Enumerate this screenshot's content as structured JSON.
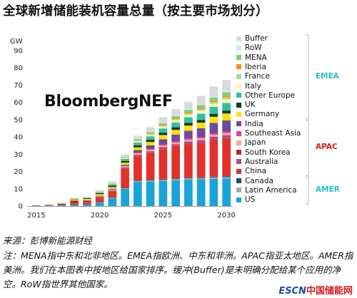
{
  "title": "全球新增储能装机容量总量（按主要市场划分）",
  "unit": "GW",
  "brand": "BloombergNEF",
  "source": "来源：彭博新能源财经",
  "note": "注：MENA指中东和北非地区。EMEA指欧洲、中东和非洲。APAC指亚太地区。AMER指美洲。我们在本图表中按地区给国家排序。缓冲(Buffer)是未明确分配给某个应用的净空。RoW指世界其他国家。",
  "watermark": {
    "part1": "ESCN",
    "part2": "中国储能网"
  },
  "region_labels": {
    "emea": {
      "text": "EMEA",
      "color": "#2bbfc4"
    },
    "apac": {
      "text": "APAC",
      "color": "#d7191c"
    },
    "amer": {
      "text": "AMER",
      "color": "#2bbfc4"
    }
  },
  "chart_data": {
    "type": "bar",
    "stacked": true,
    "ylabel": "GW",
    "ylim": [
      0,
      90
    ],
    "yticks": [
      0,
      10,
      20,
      30,
      40,
      50,
      60,
      70,
      80,
      90
    ],
    "xticks": [
      "2015",
      "2020",
      "2025",
      "2030"
    ],
    "grid": false,
    "legend_position": "right",
    "categories": [
      "2015",
      "2016",
      "2017",
      "2018",
      "2019",
      "2020",
      "2021",
      "2022",
      "2023",
      "2024",
      "2025",
      "2026",
      "2027",
      "2028",
      "2029",
      "2030"
    ],
    "series": [
      {
        "name": "US",
        "color": "#1aa3d9",
        "values": [
          0.2,
          0.3,
          0.4,
          0.8,
          1.0,
          2.0,
          4.5,
          10.0,
          14.0,
          14.3,
          14.5,
          15.0,
          15.3,
          15.5,
          15.8,
          16.0
        ]
      },
      {
        "name": "Latin America",
        "color": "#a6aaac",
        "values": [
          0,
          0,
          0,
          0,
          0,
          0.1,
          0.2,
          0.3,
          0.5,
          0.5,
          0.6,
          0.6,
          0.7,
          0.7,
          0.8,
          0.8
        ]
      },
      {
        "name": "Canada",
        "color": "#16556d",
        "values": [
          0,
          0,
          0,
          0,
          0,
          0,
          0.1,
          0.2,
          0.3,
          0.3,
          0.3,
          0.4,
          0.4,
          0.4,
          0.4,
          0.5
        ]
      },
      {
        "name": "China",
        "color": "#e2312b",
        "values": [
          0.1,
          0.2,
          0.3,
          0.8,
          1.0,
          2.5,
          3.5,
          11.0,
          14.0,
          15.5,
          17.5,
          18.5,
          19.5,
          20.0,
          21.5,
          22.0
        ]
      },
      {
        "name": "Australia",
        "color": "#a64d9c",
        "values": [
          0,
          0,
          0,
          0.1,
          0.2,
          0.3,
          0.4,
          0.5,
          0.6,
          0.7,
          0.8,
          0.9,
          1.0,
          1.1,
          1.2,
          1.3
        ]
      },
      {
        "name": "South Korea",
        "color": "#b8271e",
        "values": [
          0.1,
          0.2,
          0.5,
          1.5,
          1.0,
          0.6,
          0.3,
          0.3,
          0.3,
          0.4,
          0.4,
          0.4,
          0.4,
          0.4,
          0.4,
          0.4
        ]
      },
      {
        "name": "Japan",
        "color": "#f3a89b",
        "values": [
          0,
          0,
          0.1,
          0.2,
          0.3,
          0.4,
          0.5,
          0.7,
          0.8,
          0.9,
          1.0,
          1.0,
          1.1,
          1.1,
          1.2,
          1.2
        ]
      },
      {
        "name": "Southeast Asia",
        "color": "#e040a6",
        "values": [
          0,
          0,
          0,
          0,
          0,
          0.1,
          0.2,
          0.3,
          0.4,
          0.5,
          0.6,
          0.6,
          0.7,
          0.8,
          0.8,
          0.9
        ]
      },
      {
        "name": "India",
        "color": "#6c4a9e",
        "values": [
          0,
          0,
          0,
          0,
          0,
          0.1,
          0.3,
          0.6,
          1.5,
          2.0,
          3.0,
          4.0,
          4.5,
          5.0,
          6.0,
          6.5
        ]
      },
      {
        "name": "Germany",
        "color": "#ffe100",
        "values": [
          0.1,
          0.2,
          0.3,
          0.5,
          0.6,
          0.8,
          1.0,
          1.2,
          1.6,
          2.0,
          2.4,
          2.7,
          3.0,
          3.3,
          3.6,
          4.0
        ]
      },
      {
        "name": "UK",
        "color": "#173b1f",
        "values": [
          0,
          0,
          0.1,
          0.2,
          0.4,
          0.6,
          0.8,
          1.0,
          1.2,
          1.3,
          1.4,
          1.5,
          1.6,
          1.6,
          1.7,
          1.7
        ]
      },
      {
        "name": "Other Europe",
        "color": "#2ec0a8",
        "values": [
          0,
          0,
          0.1,
          0.2,
          0.3,
          0.5,
          0.8,
          1.2,
          1.6,
          2.0,
          2.4,
          2.8,
          3.2,
          3.6,
          4.0,
          4.4
        ]
      },
      {
        "name": "Italy",
        "color": "#fff4b0",
        "values": [
          0,
          0,
          0,
          0.1,
          0.1,
          0.2,
          0.3,
          0.5,
          0.7,
          0.9,
          1.1,
          1.3,
          1.5,
          1.7,
          1.9,
          2.1
        ]
      },
      {
        "name": "France",
        "color": "#9fe08d",
        "values": [
          0,
          0,
          0,
          0,
          0.1,
          0.1,
          0.2,
          0.3,
          0.4,
          0.5,
          0.6,
          0.7,
          0.8,
          0.9,
          1.0,
          1.1
        ]
      },
      {
        "name": "Iberia",
        "color": "#ff8c1a",
        "values": [
          0,
          0,
          0,
          0,
          0,
          0.1,
          0.1,
          0.2,
          0.3,
          0.4,
          0.5,
          0.6,
          0.7,
          0.8,
          0.9,
          1.0
        ]
      },
      {
        "name": "MENA",
        "color": "#7fd36d",
        "values": [
          0,
          0,
          0,
          0,
          0,
          0.1,
          0.2,
          0.3,
          0.5,
          0.7,
          0.9,
          1.1,
          1.3,
          1.5,
          1.7,
          2.0
        ]
      },
      {
        "name": "RoW",
        "color": "#bfeeff",
        "values": [
          0,
          0,
          0,
          0,
          0,
          0.1,
          0.1,
          0.2,
          0.3,
          0.4,
          0.5,
          0.6,
          0.7,
          0.8,
          0.9,
          1.0
        ]
      },
      {
        "name": "Buffer",
        "color": "#d9d9d9",
        "values": [
          0,
          0,
          0.1,
          0.2,
          0.3,
          0.5,
          0.8,
          1.2,
          1.8,
          2.4,
          3.0,
          3.5,
          4.0,
          4.6,
          5.4,
          6.1
        ]
      }
    ]
  }
}
